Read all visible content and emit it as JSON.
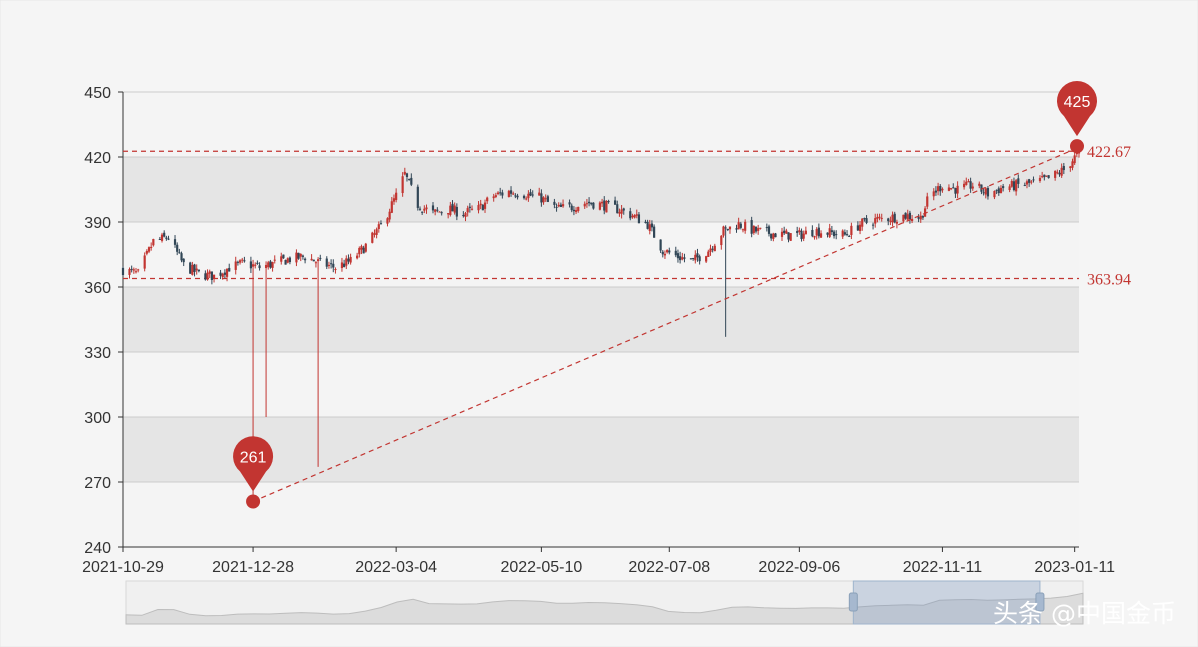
{
  "chart_data": {
    "type": "candlestick",
    "title": "",
    "xlabel": "",
    "ylabel": "",
    "ylim": [
      240,
      450
    ],
    "yticks": [
      240,
      270,
      300,
      330,
      360,
      390,
      420,
      450
    ],
    "x_start": "2021-10-29",
    "x_end": "2023-01-13",
    "xticks": [
      "2021-10-29",
      "2021-12-28",
      "2022-03-04",
      "2022-05-10",
      "2022-07-08",
      "2022-09-06",
      "2022-11-11",
      "2023-01-11"
    ],
    "grid": true,
    "colors": {
      "up": "#c23531",
      "down": "#314656",
      "markline": "#c23531"
    },
    "approx_close_path": [
      [
        "2021-10-29",
        368
      ],
      [
        "2021-11-05",
        366
      ],
      [
        "2021-11-12",
        381
      ],
      [
        "2021-11-19",
        383
      ],
      [
        "2021-11-26",
        370
      ],
      [
        "2021-12-03",
        366
      ],
      [
        "2021-12-10",
        365
      ],
      [
        "2021-12-17",
        369
      ],
      [
        "2021-12-24",
        371
      ],
      [
        "2021-12-31",
        369
      ],
      [
        "2022-01-07",
        371
      ],
      [
        "2022-01-14",
        373
      ],
      [
        "2022-01-21",
        374
      ],
      [
        "2022-01-28",
        371
      ],
      [
        "2022-02-04",
        369
      ],
      [
        "2022-02-11",
        372
      ],
      [
        "2022-02-18",
        379
      ],
      [
        "2022-02-25",
        388
      ],
      [
        "2022-03-04",
        402
      ],
      [
        "2022-03-08",
        412
      ],
      [
        "2022-03-14",
        398
      ],
      [
        "2022-03-21",
        394
      ],
      [
        "2022-03-28",
        396
      ],
      [
        "2022-04-04",
        394
      ],
      [
        "2022-04-11",
        396
      ],
      [
        "2022-04-18",
        402
      ],
      [
        "2022-04-25",
        404
      ],
      [
        "2022-05-02",
        403
      ],
      [
        "2022-05-10",
        401
      ],
      [
        "2022-05-17",
        396
      ],
      [
        "2022-05-24",
        397
      ],
      [
        "2022-05-31",
        399
      ],
      [
        "2022-06-07",
        398
      ],
      [
        "2022-06-14",
        396
      ],
      [
        "2022-06-21",
        393
      ],
      [
        "2022-06-28",
        389
      ],
      [
        "2022-07-05",
        377
      ],
      [
        "2022-07-12",
        374
      ],
      [
        "2022-07-19",
        372
      ],
      [
        "2022-07-26",
        377
      ],
      [
        "2022-08-02",
        386
      ],
      [
        "2022-08-09",
        389
      ],
      [
        "2022-08-16",
        386
      ],
      [
        "2022-08-23",
        385
      ],
      [
        "2022-08-30",
        384
      ],
      [
        "2022-09-06",
        384
      ],
      [
        "2022-09-13",
        386
      ],
      [
        "2022-09-20",
        385
      ],
      [
        "2022-09-27",
        384
      ],
      [
        "2022-10-04",
        389
      ],
      [
        "2022-10-11",
        391
      ],
      [
        "2022-10-18",
        392
      ],
      [
        "2022-10-25",
        393
      ],
      [
        "2022-11-01",
        392
      ],
      [
        "2022-11-05",
        402
      ],
      [
        "2022-11-11",
        407
      ],
      [
        "2022-11-18",
        405
      ],
      [
        "2022-11-25",
        407
      ],
      [
        "2022-12-02",
        403
      ],
      [
        "2022-12-09",
        406
      ],
      [
        "2022-12-16",
        407
      ],
      [
        "2022-12-23",
        408
      ],
      [
        "2022-12-30",
        410
      ],
      [
        "2023-01-06",
        414
      ],
      [
        "2023-01-13",
        422
      ]
    ],
    "long_lower_wicks": [
      [
        "2021-12-28",
        261
      ],
      [
        "2022-01-03",
        300
      ],
      [
        "2022-01-27",
        277
      ],
      [
        "2022-08-03",
        337
      ],
      [
        "2022-10-30",
        365
      ]
    ],
    "mark_points": [
      {
        "label": "261",
        "date": "2021-12-28",
        "value": 261,
        "type": "min"
      },
      {
        "label": "425",
        "date": "2023-01-13",
        "value": 425,
        "type": "max"
      }
    ],
    "mark_lines": [
      {
        "label": "422.67",
        "value": 422.67
      },
      {
        "label": "363.94",
        "value": 363.94
      }
    ],
    "trend_line": {
      "from": [
        "2021-12-28",
        261
      ],
      "to": [
        "2023-01-13",
        425
      ]
    },
    "data_zoom": {
      "start_fraction": 0.76,
      "end_fraction": 0.955
    }
  },
  "watermark": "头条 @中国金币"
}
